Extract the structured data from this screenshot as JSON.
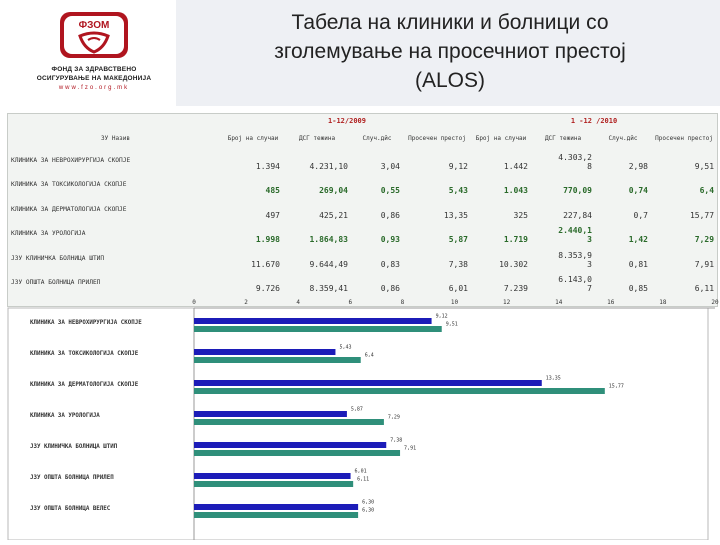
{
  "logo": {
    "abbr": "ФЗОМ",
    "line1": "ФОНД ЗА ЗДРАВСТВЕНО",
    "line2": "ОСИГУРУВАЊЕ НА МАКЕДОНИЈА",
    "url": "www.fzo.org.mk",
    "colors": {
      "red": "#b0151f"
    }
  },
  "title": [
    "Табела на клиники и болници со",
    "зголемување на просечниот престој",
    "(ALOS)"
  ],
  "table": {
    "groups": [
      "1-12/2009",
      "1 -12   /2010"
    ],
    "columns": [
      "ЗУ Назив",
      "Број на случаи",
      "ДСГ тежина",
      "Случ.дйс",
      "Просечен престој",
      "Број на случаи",
      "ДСГ тежина",
      "Случ.дйс",
      "Просечен престој"
    ],
    "rows": [
      {
        "name": "КЛИНИКА ЗА НЕВРОХИРУРГИЈА СКОПЈЕ",
        "v": [
          "1.394",
          "4.231,10",
          "3,04",
          "9,12",
          "1.442",
          "4.303,2\n8",
          "2,98",
          "9,51"
        ],
        "bold": false
      },
      {
        "name": "КЛИНИКА ЗА ТОКСИКОЛОГИЈА СКОПЈЕ",
        "v": [
          "485",
          "269,04",
          "0,55",
          "5,43",
          "1.043",
          "770,09",
          "0,74",
          "6,4"
        ],
        "bold": true
      },
      {
        "name": "КЛИНИКА ЗА ДЕРМАТОЛОГИЈА СКОПЈЕ",
        "v": [
          "497",
          "425,21",
          "0,86",
          "13,35",
          "325",
          "227,84",
          "0,7",
          "15,77"
        ],
        "bold": false
      },
      {
        "name": "КЛИНИКА ЗА УРОЛОГИЈА",
        "v": [
          "1.998",
          "1.864,83",
          "0,93",
          "5,87",
          "1.719",
          "2.440,1\n3",
          "1,42",
          "7,29"
        ],
        "bold": true
      },
      {
        "name": "ЈЗУ КЛИНИЧКА БОЛНИЦА ШТИП",
        "v": [
          "11.670",
          "9.644,49",
          "0,83",
          "7,38",
          "10.302",
          "8.353,9\n3",
          "0,81",
          "7,91"
        ],
        "bold": false
      },
      {
        "name": "ЈЗУ ОПШТА БОЛНИЦА ПРИЛЕП",
        "v": [
          "9.726",
          "8.359,41",
          "0,86",
          "6,01",
          "7.239",
          "6.143,0\n7",
          "0,85",
          "6,11"
        ],
        "bold": false
      }
    ]
  },
  "chart_data": {
    "type": "bar",
    "orientation": "horizontal",
    "categories": [
      "КЛИНИКА ЗА НЕВРОХИРУРГИЈА СКОПЈЕ",
      "КЛИНИКА ЗА ТОКСИКОЛОГИЈА СКОПЈЕ",
      "КЛИНИКА ЗА ДЕРМАТОЛОГИЈА СКОПЈЕ",
      "КЛИНИКА ЗА УРОЛОГИЈА",
      "ЈЗУ КЛИНИЧКА БОЛНИЦА ШТИП",
      "ЈЗУ ОПШТА БОЛНИЦА ПРИЛЕП",
      "ЈЗУ ОПШТА БОЛНИЦА ВЕЛЕС"
    ],
    "series": [
      {
        "values": [
          9.12,
          5.43,
          13.35,
          5.87,
          7.38,
          6.01,
          6.3
        ],
        "labels": [
          "9,12",
          "5,43",
          "13,35",
          "5,87",
          "7,38",
          "6,01",
          "6,30"
        ],
        "color": "#1c1cb8"
      },
      {
        "values": [
          9.51,
          6.4,
          15.77,
          7.29,
          7.91,
          6.11,
          6.3
        ],
        "labels": [
          "9,51",
          "6,4",
          "15,77",
          "7,29",
          "7,91",
          "6,11",
          "6,30"
        ],
        "color": "#2f8f7a"
      }
    ],
    "x_ticks": [
      "0",
      "2",
      "4",
      "6",
      "8",
      "10",
      "12",
      "14",
      "16",
      "18",
      "20"
    ],
    "xlim": [
      0,
      20
    ],
    "grid": false,
    "legend": "none"
  }
}
